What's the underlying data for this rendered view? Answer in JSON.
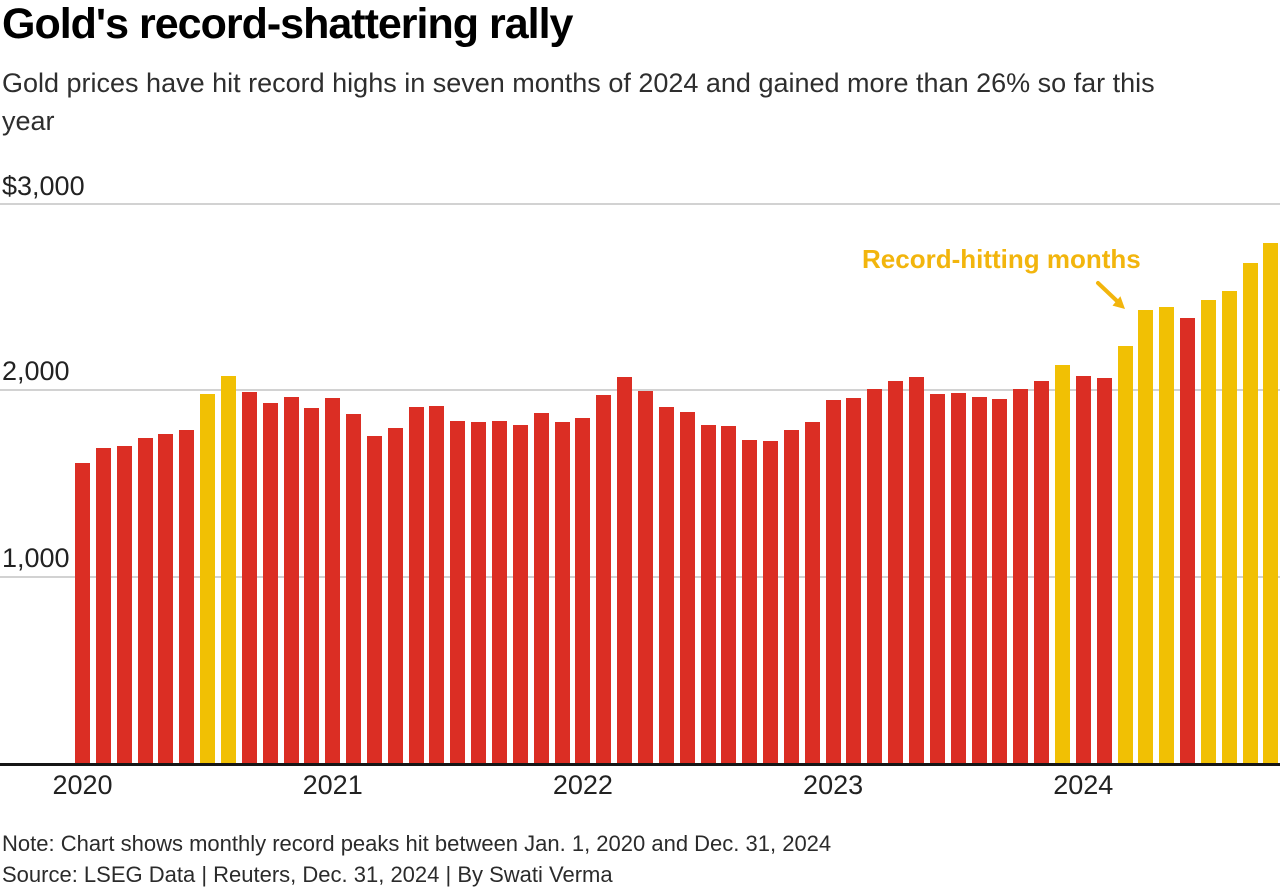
{
  "header": {
    "title": "Gold's record-shattering rally",
    "subtitle_line1": "Gold prices have hit record highs in seven months of 2024 and gained more than 26% so far this",
    "subtitle_line2": "year"
  },
  "annotation": {
    "label": "Record-hitting months"
  },
  "footer": {
    "note": "Note: Chart shows monthly record peaks hit between Jan. 1, 2020 and Dec. 31, 2024",
    "source": "Source: LSEG Data | Reuters, Dec. 31, 2024 | By Swati Verma"
  },
  "colors": {
    "bar_red": "#DB2E24",
    "bar_gold": "#F1C004",
    "annotation_gold": "#F2B50D",
    "axis_line": "#161616",
    "gridline": "#d2d2d2"
  },
  "chart_data": {
    "type": "bar",
    "title": "Gold's record-shattering rally",
    "subtitle": "Gold prices have hit record highs in seven months of 2024 and gained more than 26% so far this year",
    "ylabel": "",
    "xlabel": "",
    "ylim": [
      0,
      3000
    ],
    "grid": true,
    "y_tick_values": [
      3000,
      2000,
      1000
    ],
    "y_tick_labels": [
      "$3,000",
      "2,000",
      "1,000"
    ],
    "x_tick_labels": [
      "2020",
      "2021",
      "2022",
      "2023",
      "2024"
    ],
    "series_note": "monthly peak gold price, USD; record:true = record-hitting month (gold bar)",
    "months": [
      {
        "label": "Jan 2020",
        "value": 1611,
        "record": false
      },
      {
        "label": "Feb 2020",
        "value": 1689,
        "record": false
      },
      {
        "label": "Mar 2020",
        "value": 1703,
        "record": false
      },
      {
        "label": "Apr 2020",
        "value": 1747,
        "record": false
      },
      {
        "label": "May 2020",
        "value": 1765,
        "record": false
      },
      {
        "label": "Jun 2020",
        "value": 1785,
        "record": false
      },
      {
        "label": "Jul 2020",
        "value": 1981,
        "record": true
      },
      {
        "label": "Aug 2020",
        "value": 2075,
        "record": true
      },
      {
        "label": "Sep 2020",
        "value": 1992,
        "record": false
      },
      {
        "label": "Oct 2020",
        "value": 1933,
        "record": false
      },
      {
        "label": "Nov 2020",
        "value": 1965,
        "record": false
      },
      {
        "label": "Dec 2020",
        "value": 1906,
        "record": false
      },
      {
        "label": "Jan 2021",
        "value": 1959,
        "record": false
      },
      {
        "label": "Feb 2021",
        "value": 1871,
        "record": false
      },
      {
        "label": "Mar 2021",
        "value": 1755,
        "record": false
      },
      {
        "label": "Apr 2021",
        "value": 1798,
        "record": false
      },
      {
        "label": "May 2021",
        "value": 1912,
        "record": false
      },
      {
        "label": "Jun 2021",
        "value": 1916,
        "record": false
      },
      {
        "label": "Jul 2021",
        "value": 1834,
        "record": false
      },
      {
        "label": "Aug 2021",
        "value": 1831,
        "record": false
      },
      {
        "label": "Sep 2021",
        "value": 1834,
        "record": false
      },
      {
        "label": "Oct 2021",
        "value": 1813,
        "record": false
      },
      {
        "label": "Nov 2021",
        "value": 1877,
        "record": false
      },
      {
        "label": "Dec 2021",
        "value": 1830,
        "record": false
      },
      {
        "label": "Jan 2022",
        "value": 1853,
        "record": false
      },
      {
        "label": "Feb 2022",
        "value": 1974,
        "record": false
      },
      {
        "label": "Mar 2022",
        "value": 2070,
        "record": false
      },
      {
        "label": "Apr 2022",
        "value": 1998,
        "record": false
      },
      {
        "label": "May 2022",
        "value": 1910,
        "record": false
      },
      {
        "label": "Jun 2022",
        "value": 1882,
        "record": false
      },
      {
        "label": "Jul 2022",
        "value": 1813,
        "record": false
      },
      {
        "label": "Aug 2022",
        "value": 1807,
        "record": false
      },
      {
        "label": "Sep 2022",
        "value": 1735,
        "record": false
      },
      {
        "label": "Oct 2022",
        "value": 1730,
        "record": false
      },
      {
        "label": "Nov 2022",
        "value": 1786,
        "record": false
      },
      {
        "label": "Dec 2022",
        "value": 1833,
        "record": false
      },
      {
        "label": "Jan 2023",
        "value": 1949,
        "record": false
      },
      {
        "label": "Feb 2023",
        "value": 1960,
        "record": false
      },
      {
        "label": "Mar 2023",
        "value": 2009,
        "record": false
      },
      {
        "label": "Apr 2023",
        "value": 2048,
        "record": false
      },
      {
        "label": "May 2023",
        "value": 2072,
        "record": false
      },
      {
        "label": "Jun 2023",
        "value": 1983,
        "record": false
      },
      {
        "label": "Jul 2023",
        "value": 1987,
        "record": false
      },
      {
        "label": "Aug 2023",
        "value": 1965,
        "record": false
      },
      {
        "label": "Sep 2023",
        "value": 1953,
        "record": false
      },
      {
        "label": "Oct 2023",
        "value": 2009,
        "record": false
      },
      {
        "label": "Nov 2023",
        "value": 2048,
        "record": false
      },
      {
        "label": "Dec 2023",
        "value": 2135,
        "record": true
      },
      {
        "label": "Jan 2024",
        "value": 2078,
        "record": false
      },
      {
        "label": "Feb 2024",
        "value": 2065,
        "record": false
      },
      {
        "label": "Mar 2024",
        "value": 2236,
        "record": true
      },
      {
        "label": "Apr 2024",
        "value": 2431,
        "record": true
      },
      {
        "label": "May 2024",
        "value": 2450,
        "record": true
      },
      {
        "label": "Jun 2024",
        "value": 2387,
        "record": false
      },
      {
        "label": "Jul 2024",
        "value": 2483,
        "record": true
      },
      {
        "label": "Aug 2024",
        "value": 2531,
        "record": true
      },
      {
        "label": "Sep 2024",
        "value": 2685,
        "record": true
      },
      {
        "label": "Oct 2024",
        "value": 2790,
        "record": true
      }
    ]
  }
}
